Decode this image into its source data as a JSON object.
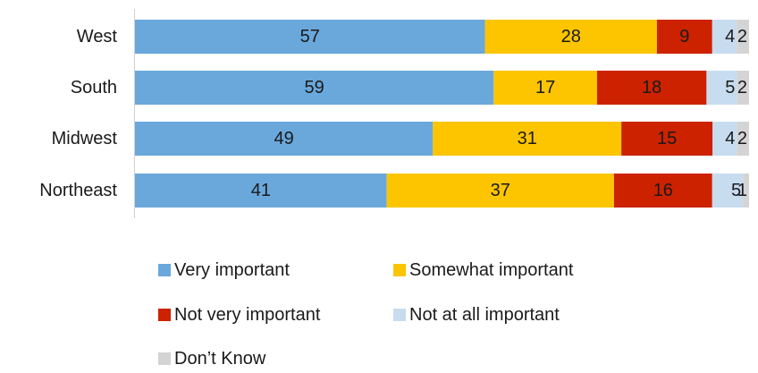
{
  "chart_data": {
    "type": "bar",
    "orientation": "horizontal",
    "stacked": true,
    "title": "",
    "xlabel": "",
    "ylabel": "",
    "xlim": [
      0,
      100
    ],
    "grid": false,
    "legend_position": "bottom",
    "categories": [
      "West",
      "South",
      "Midwest",
      "Northeast"
    ],
    "series": [
      {
        "name": "Very important",
        "color": "#6aa8dc",
        "values": [
          57,
          59,
          49,
          41
        ]
      },
      {
        "name": "Somewhat important",
        "color": "#fcc500",
        "values": [
          28,
          17,
          31,
          37
        ]
      },
      {
        "name": "Not very important",
        "color": "#cc2200",
        "values": [
          9,
          18,
          15,
          16
        ]
      },
      {
        "name": "Not at all important",
        "color": "#c8dcf0",
        "values": [
          4,
          5,
          4,
          5
        ]
      },
      {
        "name": "Don’t Know",
        "color": "#d4d4d4",
        "values": [
          2,
          2,
          2,
          1
        ]
      }
    ]
  }
}
